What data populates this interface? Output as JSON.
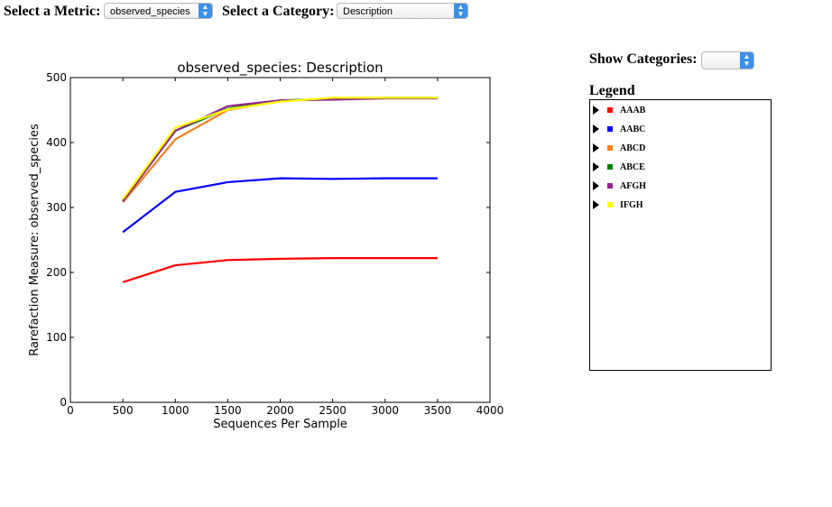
{
  "controls": {
    "metric_label": "Select a Metric:",
    "metric_value": "observed_species",
    "category_label": "Select a Category:",
    "category_value": "Description",
    "show_categories_label": "Show Categories:",
    "show_categories_value": ""
  },
  "legend": {
    "title": "Legend",
    "items": [
      {
        "label": "AAAB",
        "color": "#ff0000"
      },
      {
        "label": "AABC",
        "color": "#0000ff"
      },
      {
        "label": "ABCD",
        "color": "#f47e1f"
      },
      {
        "label": "ABCE",
        "color": "#008000"
      },
      {
        "label": "AFGH",
        "color": "#91278d"
      },
      {
        "label": "IFGH",
        "color": "#ffff00"
      }
    ]
  },
  "chart_data": {
    "type": "line",
    "title": "observed_species: Description",
    "xlabel": "Sequences Per Sample",
    "ylabel": "Rarefaction Measure: observed_species",
    "xlim": [
      0,
      4000
    ],
    "ylim": [
      0,
      500
    ],
    "xticks": [
      0,
      500,
      1000,
      1500,
      2000,
      2500,
      3000,
      3500,
      4000
    ],
    "yticks": [
      0,
      100,
      200,
      300,
      400,
      500
    ],
    "x": [
      500,
      1000,
      1500,
      2000,
      2500,
      3000,
      3500
    ],
    "grid": false,
    "series": [
      {
        "name": "AAAB",
        "color": "#ff0000",
        "values": [
          185,
          211,
          219,
          221,
          222,
          222,
          222
        ]
      },
      {
        "name": "AABC",
        "color": "#0000ff",
        "values": [
          262,
          324,
          339,
          345,
          344,
          345,
          345
        ]
      },
      {
        "name": "ABCD",
        "color": "#f47e1f",
        "values": [
          308,
          405,
          450,
          464,
          467,
          468,
          468
        ]
      },
      {
        "name": "ABCE",
        "color": "#008000",
        "values": [
          310,
          418,
          452,
          465,
          467,
          469,
          469
        ]
      },
      {
        "name": "AFGH",
        "color": "#91278d",
        "values": [
          310,
          418,
          456,
          465,
          466,
          468,
          468
        ]
      },
      {
        "name": "IFGH",
        "color": "#ffff00",
        "values": [
          313,
          423,
          451,
          463,
          469,
          469,
          469
        ]
      }
    ]
  }
}
